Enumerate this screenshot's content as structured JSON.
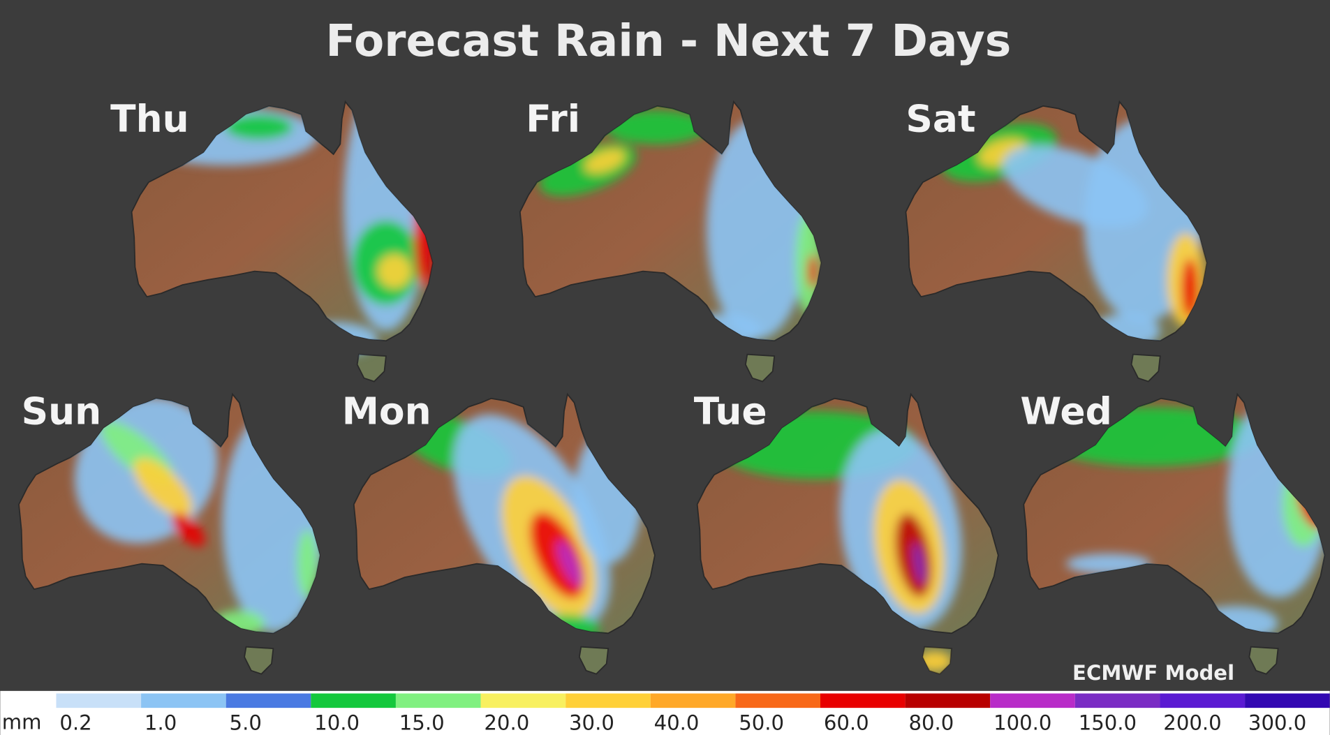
{
  "header": {
    "title": "Forecast Rain - Next 7 Days"
  },
  "days": [
    {
      "label": "Thu"
    },
    {
      "label": "Fri"
    },
    {
      "label": "Sat"
    },
    {
      "label": "Sun"
    },
    {
      "label": "Mon"
    },
    {
      "label": "Tue"
    },
    {
      "label": "Wed"
    }
  ],
  "source": "ECMWF Model",
  "legend": {
    "unit": "mm",
    "items": [
      {
        "label": "0.2",
        "color": "#c8e0f8"
      },
      {
        "label": "1.0",
        "color": "#8cc4f4"
      },
      {
        "label": "5.0",
        "color": "#4a7ae2"
      },
      {
        "label": "10.0",
        "color": "#14c83c"
      },
      {
        "label": "15.0",
        "color": "#80f080"
      },
      {
        "label": "20.0",
        "color": "#f8f060"
      },
      {
        "label": "30.0",
        "color": "#ffd038"
      },
      {
        "label": "40.0",
        "color": "#ffa828"
      },
      {
        "label": "50.0",
        "color": "#f86818"
      },
      {
        "label": "60.0",
        "color": "#e80000"
      },
      {
        "label": "80.0",
        "color": "#b80000"
      },
      {
        "label": "100.0",
        "color": "#b82cc8"
      },
      {
        "label": "150.0",
        "color": "#7a2cc4"
      },
      {
        "label": "200.0",
        "color": "#5a1ad2"
      },
      {
        "label": "300.0",
        "color": "#3208b2"
      }
    ]
  }
}
